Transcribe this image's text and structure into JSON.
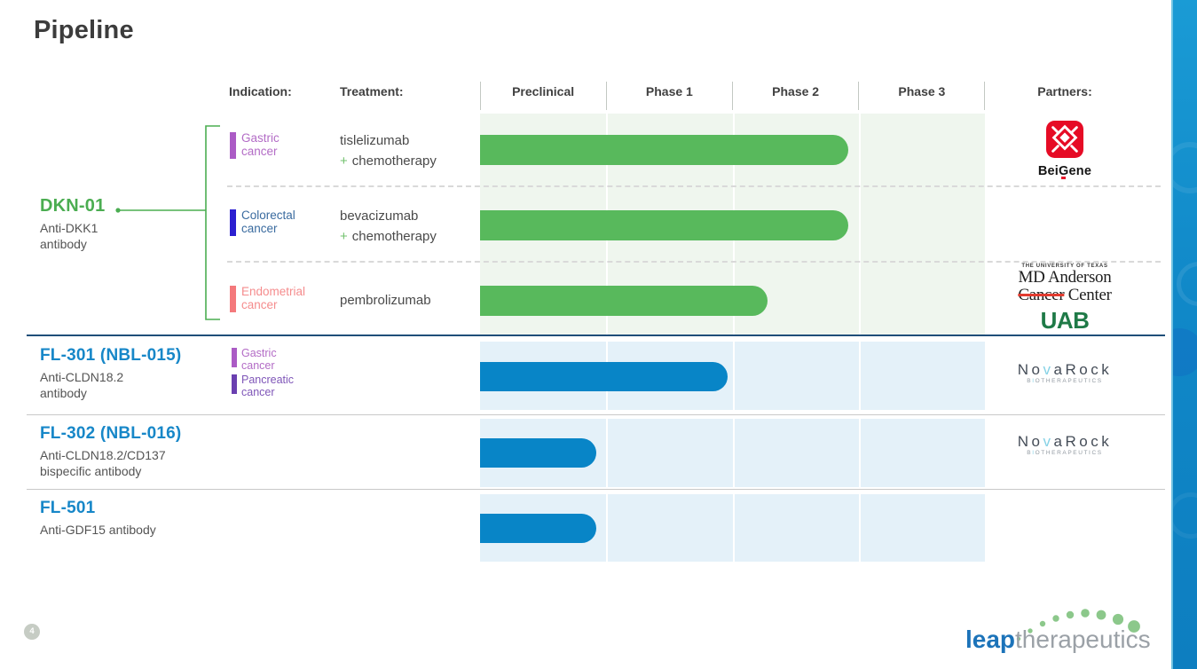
{
  "title": "Pipeline",
  "page_number": "4",
  "header": {
    "indication_label": "Indication:",
    "treatment_label": "Treatment:",
    "phases": [
      "Preclinical",
      "Phase 1",
      "Phase 2",
      "Phase 3"
    ],
    "partners_label": "Partners:"
  },
  "programs": [
    {
      "name": "DKN-01",
      "description_lines": [
        "Anti-DKK1",
        "antibody"
      ],
      "accent_color": "#4bad51",
      "rows": [
        {
          "indication": {
            "label": "Gastric cancer",
            "marker_color": "#ab5bc5",
            "text_color": "#b36cc6"
          },
          "treatment": {
            "line1": "tislelizumab",
            "plus": "+",
            "line2": "chemotherapy"
          },
          "bar": {
            "end_pct": 73,
            "color": "#58b95c"
          },
          "partner": "BeiGene"
        },
        {
          "indication": {
            "label": "Colorectal cancer",
            "marker_color": "#2b1fd0",
            "text_color": "#3a6b9f"
          },
          "treatment": {
            "line1": "bevacizumab",
            "plus": "+",
            "line2": "chemotherapy"
          },
          "bar": {
            "end_pct": 73,
            "color": "#58b95c"
          }
        },
        {
          "indication": {
            "label": "Endometrial cancer",
            "marker_color": "#f4797c",
            "text_color": "#f58c8d"
          },
          "treatment": {
            "line1": "pembrolizumab"
          },
          "bar": {
            "end_pct": 57,
            "color": "#58b95c"
          },
          "partners": [
            "MD Anderson Cancer Center",
            "UAB"
          ]
        }
      ]
    },
    {
      "name": "FL-301 (NBL-015)",
      "description_lines": [
        "Anti-CLDN18.2",
        "antibody"
      ],
      "indications": [
        {
          "label": "Gastric cancer",
          "marker_color": "#ab5bc5",
          "text_color": "#b36cc6"
        },
        {
          "label": "Pancreatic cancer",
          "marker_color": "#6a3fb0",
          "text_color": "#7f56b8"
        }
      ],
      "bar": {
        "end_pct": 49,
        "color": "#0885c7"
      },
      "partner": "NovaRock Biotherapeutics"
    },
    {
      "name": "FL-302 (NBL-016)",
      "description_lines": [
        "Anti-CLDN18.2/CD137",
        "bispecific antibody"
      ],
      "bar": {
        "end_pct": 23,
        "color": "#0885c7"
      },
      "partner": "NovaRock Biotherapeutics"
    },
    {
      "name": "FL-501",
      "description_lines": [
        "Anti-GDF15 antibody"
      ],
      "bar": {
        "end_pct": 23,
        "color": "#0885c7"
      }
    }
  ],
  "logos": {
    "beigene": {
      "pre": "Bei",
      "g": "G",
      "post": "ene"
    },
    "mdanderson": {
      "line1": "THE UNIVERSITY OF TEXAS",
      "line2": "MD Anderson",
      "struck": "Cancer",
      "rest": "Center"
    },
    "uab": "UAB",
    "novarock": {
      "pre": "No",
      "v": "v",
      "post": "aRock",
      "sub_pre": "B",
      "sub_i": "I",
      "sub_post": "OTHERAPEUTICS"
    },
    "leap": {
      "bold": "leap",
      "light": "therapeutics"
    }
  },
  "colors": {
    "green_accent": "#4bad51",
    "blue_accent": "#1787c8",
    "green_bar": "#58b95c",
    "blue_bar": "#0885c7",
    "green_track_bg": "#eff6ee",
    "blue_track_bg": "#e4f1f9",
    "section_divider_blue": "#1f4e79"
  }
}
